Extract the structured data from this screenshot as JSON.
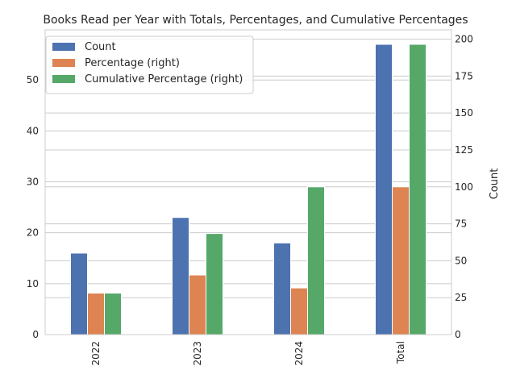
{
  "chart_data": {
    "type": "bar",
    "title": "Books Read per Year with Totals, Percentages, and Cumulative Percentages",
    "categories": [
      "2022",
      "2023",
      "2024",
      "Total"
    ],
    "series": [
      {
        "name": "Count",
        "axis": "left",
        "color": "#4c72b0",
        "values": [
          16,
          23,
          18,
          57
        ]
      },
      {
        "name": "Percentage (right)",
        "axis": "right",
        "color": "#dd8452",
        "values": [
          28.07,
          40.35,
          31.58,
          100
        ]
      },
      {
        "name": "Cumulative Percentage (right)",
        "axis": "right",
        "color": "#55a868",
        "values": [
          28.07,
          68.42,
          100,
          196.49
        ]
      }
    ],
    "left_axis": {
      "label": "",
      "ylim": [
        0,
        59.85
      ],
      "ticks": [
        0,
        10,
        20,
        30,
        40,
        50
      ]
    },
    "right_axis": {
      "label": "Count",
      "ylim": [
        0,
        206.3
      ],
      "ticks": [
        0,
        25,
        50,
        75,
        100,
        125,
        150,
        175,
        200
      ]
    },
    "grid": true,
    "legend_position": "upper-left"
  }
}
